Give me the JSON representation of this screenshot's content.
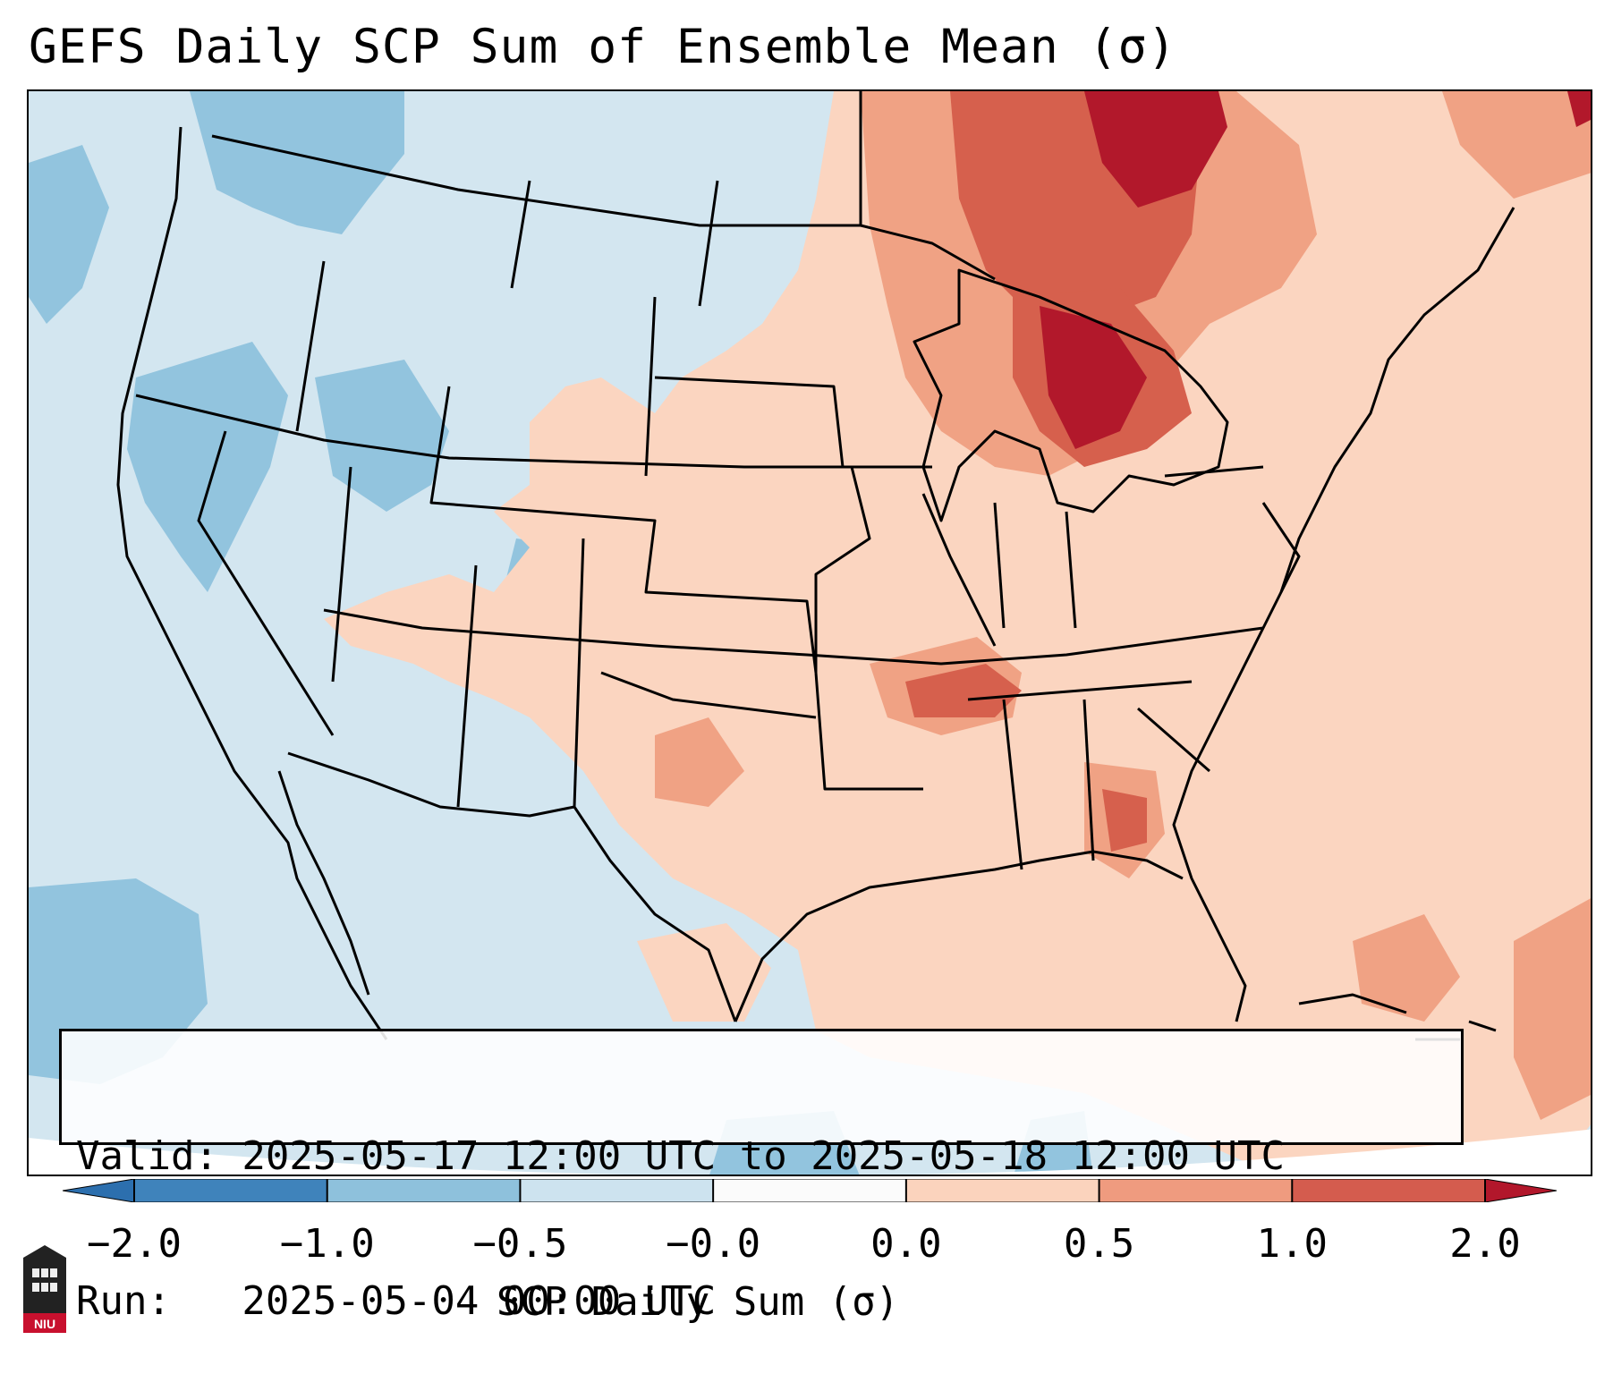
{
  "title": "GEFS Daily SCP Sum of Ensemble Mean (σ)",
  "info": {
    "valid_line": "Valid: 2025-05-17 12:00 UTC to 2025-05-18 12:00 UTC",
    "run_line": "Run:   2025-05-04 00:00 UTC"
  },
  "colorbar": {
    "label": "SCP Daily Sum (σ)",
    "ticks": [
      "−2.0",
      "−1.0",
      "−0.5",
      "−0.0",
      "0.0",
      "0.5",
      "1.0",
      "2.0"
    ],
    "colors": [
      "#3f83bb",
      "#8ec1dc",
      "#cde3ef",
      "#fbfbfb",
      "#fbd3bd",
      "#ef9b7f",
      "#d45c4e"
    ],
    "extend_low_color": "#2c6fae",
    "extend_high_color": "#b2172b"
  },
  "palette": {
    "background_light_blue": "#d3e6f0",
    "medium_blue": "#92c4de",
    "light_red": "#fbd5c0",
    "medium_red": "#f0a284",
    "strong_red": "#d6604d",
    "dark_red": "#b2182b"
  },
  "logo": {
    "text": "NIU",
    "icon": "university-seal-icon"
  }
}
